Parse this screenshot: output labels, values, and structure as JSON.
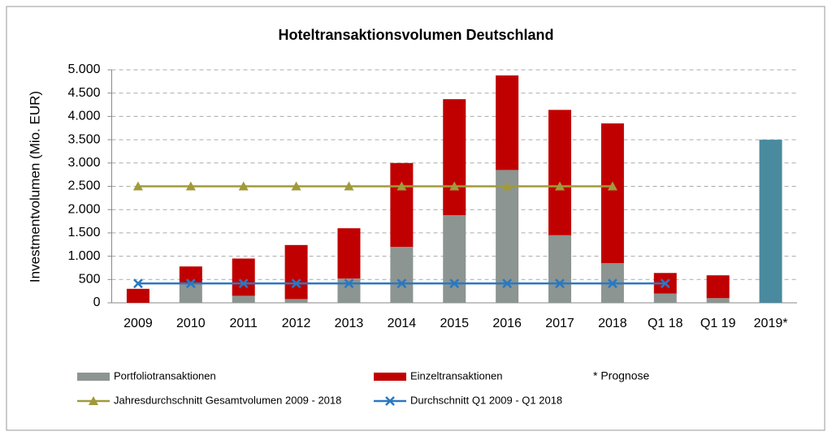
{
  "chart_data": {
    "type": "bar",
    "title": "Hoteltransaktionsvolumen  Deutschland",
    "y_label": "Investmentvolumen (Mio. EUR)",
    "note": "* Prognose",
    "categories": [
      "2009",
      "2010",
      "2011",
      "2012",
      "2013",
      "2014",
      "2015",
      "2016",
      "2017",
      "2018",
      "Q1 18",
      "Q1 19",
      "2019*"
    ],
    "ylim": [
      0,
      5000
    ],
    "yticks": [
      0,
      500,
      {
        "value": 1000,
        "label": "1.000"
      },
      {
        "value": 1500,
        "label": "1.500"
      },
      {
        "value": 2000,
        "label": "2.000"
      },
      {
        "value": 2500,
        "label": "2.500"
      },
      {
        "value": 3000,
        "label": "3.000"
      },
      {
        "value": 3500,
        "label": "3.500"
      },
      {
        "value": 4000,
        "label": "4.000"
      },
      {
        "value": 4500,
        "label": "4.500"
      },
      {
        "value": 5000,
        "label": "5.000"
      }
    ],
    "grid": true,
    "series": [
      {
        "name": "Portfoliotransaktionen",
        "type": "bar",
        "color": "#8c9591",
        "values": [
          0,
          400,
          150,
          80,
          520,
          1200,
          1880,
          2850,
          1450,
          850,
          200,
          100,
          null
        ]
      },
      {
        "name": "Einzeltransaktionen",
        "type": "bar",
        "color": "#c00000",
        "values": [
          300,
          380,
          800,
          1160,
          1080,
          1800,
          2490,
          2030,
          2690,
          3000,
          440,
          490,
          null
        ]
      },
      {
        "type": "bar",
        "color": "#4a8a9e",
        "values": [
          null,
          null,
          null,
          null,
          null,
          null,
          null,
          null,
          null,
          null,
          null,
          null,
          3500
        ]
      },
      {
        "name": "Jahresdurchschnitt Gesamtvolumen 2009 - 2018",
        "type": "line",
        "marker": "triangle",
        "color": "#a09a3c",
        "values": [
          2500,
          2500,
          2500,
          2500,
          2500,
          2500,
          2500,
          2500,
          2500,
          2500,
          null,
          null,
          null
        ]
      },
      {
        "name": "Durchschnitt Q1 2009 - Q1 2018",
        "type": "line",
        "marker": "x",
        "color": "#2a78c2",
        "values": [
          415,
          415,
          415,
          415,
          415,
          415,
          415,
          415,
          415,
          415,
          415,
          null,
          null
        ]
      }
    ]
  }
}
